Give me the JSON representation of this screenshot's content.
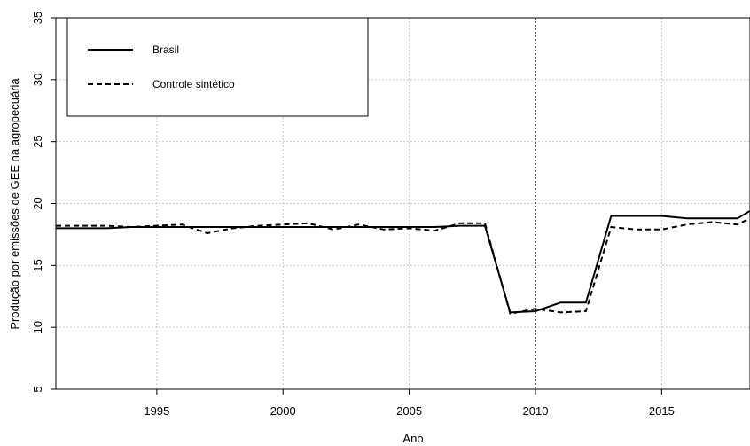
{
  "chart_data": {
    "type": "line",
    "xlabel": "Ano",
    "ylabel": "Produção por emissões de GEE na agropecuária",
    "xlim": [
      1991,
      2018.5
    ],
    "ylim": [
      5,
      35
    ],
    "x_ticks": [
      1995,
      2000,
      2005,
      2010,
      2015
    ],
    "y_ticks": [
      5,
      10,
      15,
      20,
      25,
      30,
      35
    ],
    "grid": true,
    "vline": 2010,
    "legend": {
      "position": "top-left",
      "entries": [
        "Brasil",
        "Controle sintético"
      ]
    },
    "series": [
      {
        "name": "Brasil",
        "style": "solid",
        "x": [
          1991,
          1992,
          1993,
          1994,
          1995,
          1996,
          1997,
          1998,
          1999,
          2000,
          2001,
          2002,
          2003,
          2004,
          2005,
          2006,
          2007,
          2008,
          2009,
          2010,
          2011,
          2012,
          2013,
          2014,
          2015,
          2016,
          2017,
          2018,
          2018.5
        ],
        "y": [
          18.0,
          18.0,
          18.0,
          18.1,
          18.1,
          18.1,
          18.1,
          18.1,
          18.1,
          18.1,
          18.1,
          18.1,
          18.1,
          18.1,
          18.1,
          18.1,
          18.2,
          18.2,
          11.2,
          11.3,
          12.0,
          12.0,
          19.0,
          19.0,
          19.0,
          18.8,
          18.8,
          18.8,
          19.4
        ]
      },
      {
        "name": "Controle sintético",
        "style": "dashed",
        "x": [
          1991,
          1992,
          1993,
          1994,
          1995,
          1996,
          1997,
          1998,
          1999,
          2000,
          2001,
          2002,
          2003,
          2004,
          2005,
          2006,
          2007,
          2008,
          2009,
          2010,
          2011,
          2012,
          2013,
          2014,
          2015,
          2016,
          2017,
          2018,
          2018.5
        ],
        "y": [
          18.2,
          18.2,
          18.2,
          18.1,
          18.2,
          18.3,
          17.6,
          18.0,
          18.2,
          18.3,
          18.4,
          17.9,
          18.3,
          17.9,
          18.0,
          17.8,
          18.4,
          18.4,
          11.1,
          11.5,
          11.2,
          11.3,
          18.1,
          17.9,
          17.9,
          18.3,
          18.5,
          18.3,
          18.8
        ]
      }
    ]
  }
}
